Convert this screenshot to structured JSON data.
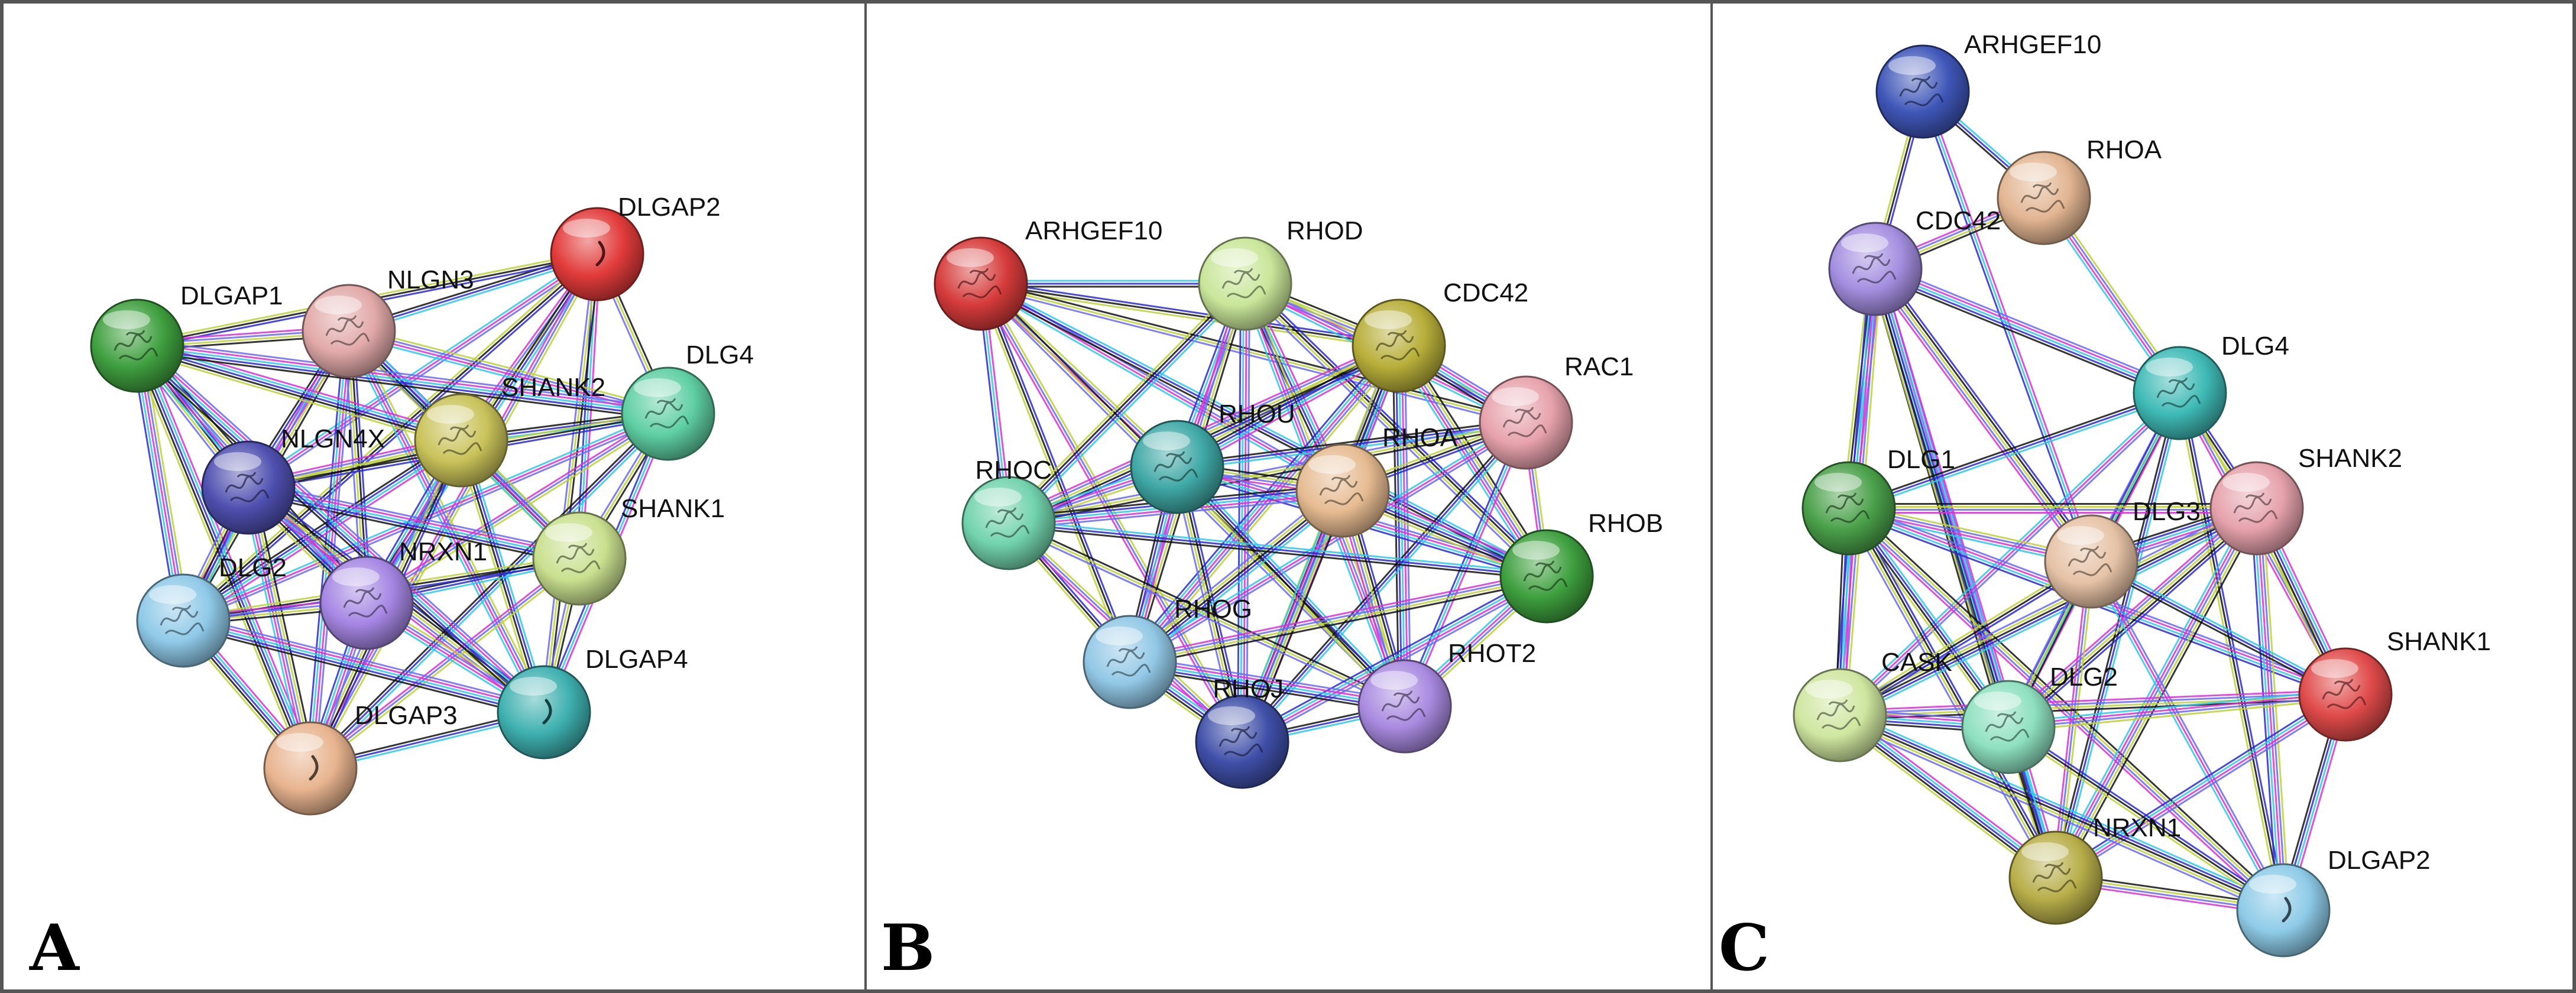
{
  "colors": {
    "edge": [
      "#d633d6",
      "#2fc7e8",
      "#2a2ad0",
      "#111111",
      "#bcd13a",
      "#6a6af0"
    ],
    "text": "#111111"
  },
  "panels": [
    {
      "letter": "A",
      "nodes": [
        {
          "name": "DLGAP2",
          "color": "#e23b3b",
          "icon": "crescent"
        },
        {
          "name": "NLGN3",
          "color": "#e2a9a9",
          "icon": "protein"
        },
        {
          "name": "DLGAP1",
          "color": "#3f9f3f",
          "icon": "protein"
        },
        {
          "name": "DLG4",
          "color": "#5fcfa3",
          "icon": "protein"
        },
        {
          "name": "SHANK2",
          "color": "#c9c25a",
          "icon": "protein"
        },
        {
          "name": "NLGN4X",
          "color": "#4f4fb0",
          "icon": "protein"
        },
        {
          "name": "SHANK1",
          "color": "#c9e08f",
          "icon": "protein"
        },
        {
          "name": "NRXN1",
          "color": "#a586e3",
          "icon": "protein"
        },
        {
          "name": "DLG2",
          "color": "#8fc9e8",
          "icon": "protein"
        },
        {
          "name": "DLGAP4",
          "color": "#3fb0b0",
          "icon": "crescent"
        },
        {
          "name": "DLGAP3",
          "color": "#e8b48f",
          "icon": "crescent"
        }
      ]
    },
    {
      "letter": "B",
      "nodes": [
        {
          "name": "ARHGEF10",
          "color": "#d63b3b",
          "icon": "protein"
        },
        {
          "name": "RHOD",
          "color": "#c9e69a",
          "icon": "protein"
        },
        {
          "name": "CDC42",
          "color": "#b8ae3a",
          "icon": "protein"
        },
        {
          "name": "RAC1",
          "color": "#e7a2ac",
          "icon": "protein"
        },
        {
          "name": "RHOU",
          "color": "#3fa8a6",
          "icon": "protein"
        },
        {
          "name": "RHOA",
          "color": "#e6bb92",
          "icon": "protein"
        },
        {
          "name": "RHOC",
          "color": "#72d3ad",
          "icon": "protein"
        },
        {
          "name": "RHOB",
          "color": "#3e9f3e",
          "icon": "protein"
        },
        {
          "name": "RHOG",
          "color": "#92c8e6",
          "icon": "protein"
        },
        {
          "name": "RHOT2",
          "color": "#a98ae0",
          "icon": "protein"
        },
        {
          "name": "RHOJ",
          "color": "#3f4fa8",
          "icon": "protein"
        }
      ]
    },
    {
      "letter": "C",
      "nodes": [
        {
          "name": "ARHGEF10",
          "color": "#3f56b8",
          "icon": "protein"
        },
        {
          "name": "RHOA",
          "color": "#e2b592",
          "icon": "protein"
        },
        {
          "name": "CDC42",
          "color": "#a48ee0",
          "icon": "protein"
        },
        {
          "name": "DLG4",
          "color": "#3fbab6",
          "icon": "protein"
        },
        {
          "name": "DLG1",
          "color": "#4aa04a",
          "icon": "protein"
        },
        {
          "name": "SHANK2",
          "color": "#e6a2ac",
          "icon": "protein"
        },
        {
          "name": "DLG3",
          "color": "#e6c2a6",
          "icon": "protein"
        },
        {
          "name": "SHANK1",
          "color": "#e04a4a",
          "icon": "protein"
        },
        {
          "name": "CASK",
          "color": "#cfe6a0",
          "icon": "protein"
        },
        {
          "name": "DLG2",
          "color": "#8ee0c0",
          "icon": "protein"
        },
        {
          "name": "NRXN1",
          "color": "#b8ae4a",
          "icon": "protein"
        },
        {
          "name": "DLGAP2",
          "color": "#8ecbe8",
          "icon": "crescent"
        }
      ]
    }
  ]
}
